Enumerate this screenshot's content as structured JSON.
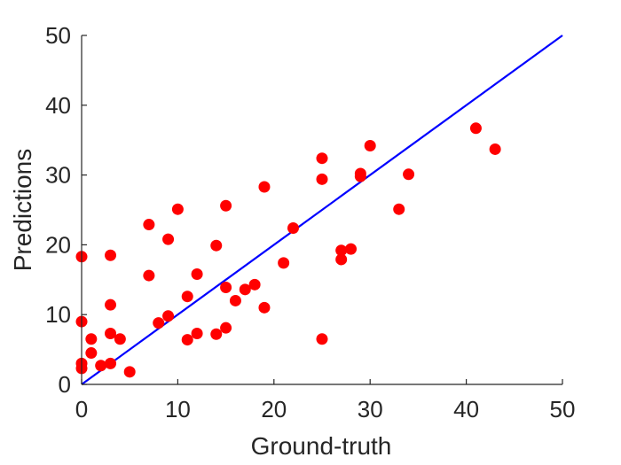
{
  "chart_data": {
    "type": "scatter",
    "title": "",
    "xlabel": "Ground-truth",
    "ylabel": "Predictions",
    "xlim": [
      0,
      50
    ],
    "ylim": [
      0,
      50
    ],
    "xticks": [
      0,
      10,
      20,
      30,
      40,
      50
    ],
    "yticks": [
      0,
      10,
      20,
      30,
      40,
      50
    ],
    "grid": false,
    "series": [
      {
        "marker_color": "#ff0000",
        "points": [
          [
            0,
            18.3
          ],
          [
            0,
            9
          ],
          [
            0,
            3
          ],
          [
            0,
            2.3
          ],
          [
            1,
            6.5
          ],
          [
            1,
            4.5
          ],
          [
            2,
            2.7
          ],
          [
            3,
            18.5
          ],
          [
            3,
            11.4
          ],
          [
            3,
            7.3
          ],
          [
            3,
            3
          ],
          [
            4,
            6.5
          ],
          [
            5,
            1.8
          ],
          [
            7,
            22.9
          ],
          [
            7,
            15.6
          ],
          [
            8,
            8.8
          ],
          [
            9,
            20.8
          ],
          [
            9,
            9.8
          ],
          [
            10,
            25.1
          ],
          [
            11,
            12.6
          ],
          [
            11,
            6.4
          ],
          [
            12,
            15.8
          ],
          [
            12,
            7.3
          ],
          [
            14,
            19.9
          ],
          [
            14,
            7.2
          ],
          [
            15,
            25.6
          ],
          [
            15,
            13.9
          ],
          [
            15,
            8.1
          ],
          [
            16,
            12
          ],
          [
            17,
            13.6
          ],
          [
            18,
            14.3
          ],
          [
            19,
            28.3
          ],
          [
            19,
            11
          ],
          [
            21,
            17.4
          ],
          [
            22,
            22.4
          ],
          [
            25,
            32.4
          ],
          [
            25,
            29.4
          ],
          [
            25,
            6.5
          ],
          [
            27,
            19.2
          ],
          [
            27,
            17.9
          ],
          [
            28,
            19.4
          ],
          [
            29,
            30.2
          ],
          [
            29,
            29.8
          ],
          [
            30,
            34.2
          ],
          [
            33,
            25.1
          ],
          [
            34,
            30.1
          ],
          [
            41,
            36.7
          ],
          [
            43,
            33.7
          ]
        ]
      }
    ],
    "reference_line": {
      "from": [
        0,
        0
      ],
      "to": [
        50,
        50
      ],
      "color": "#0000ff"
    }
  }
}
